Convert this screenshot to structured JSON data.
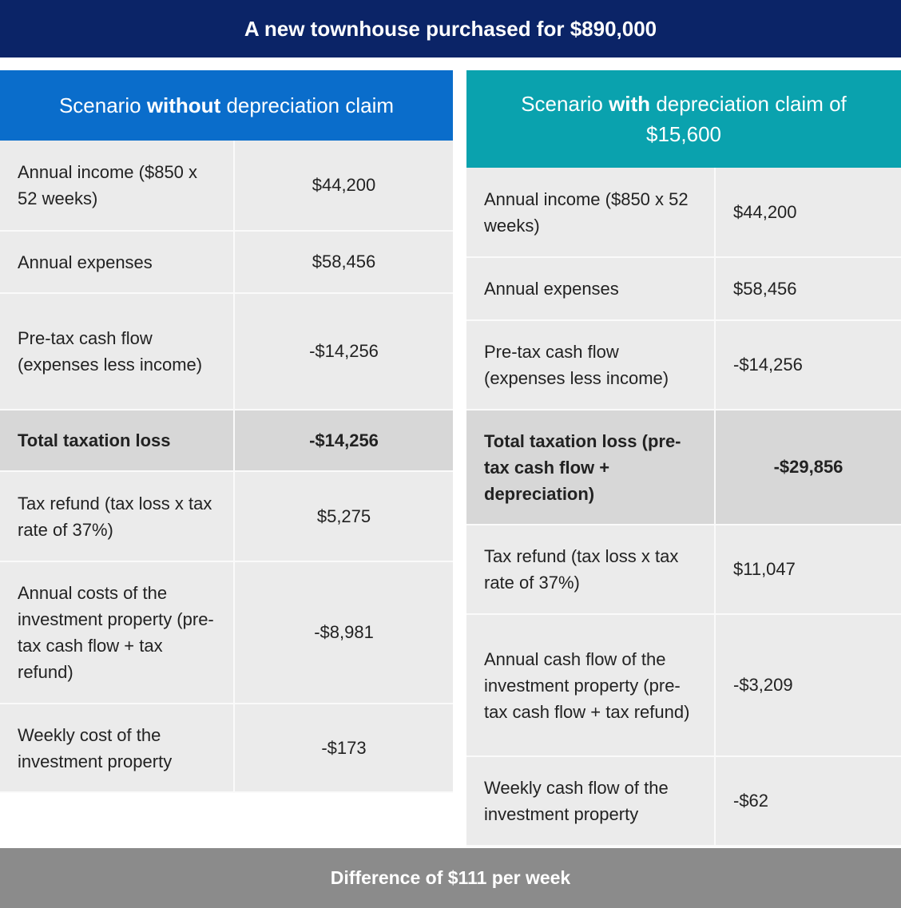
{
  "header": {
    "title": "A new townhouse purchased for $890,000"
  },
  "scenarios": [
    {
      "title_parts": [
        "Scenario",
        "without",
        "depreciation claim"
      ],
      "rows": [
        {
          "label": "Annual income ($850 x 52 weeks)",
          "value": "$44,200",
          "emphasis": false
        },
        {
          "label": "Annual expenses",
          "value": "$58,456",
          "emphasis": false
        },
        {
          "label": "Pre-tax cash flow (expenses less income)",
          "value": "-$14,256",
          "emphasis": false
        },
        {
          "label": "Total taxation loss",
          "value": "-$14,256",
          "emphasis": true
        },
        {
          "label": "Tax refund (tax loss x tax rate of 37%)",
          "value": "$5,275",
          "emphasis": false
        },
        {
          "label": "Annual costs of the investment property (pre-tax cash flow + tax refund)",
          "value": "-$8,981",
          "emphasis": false
        },
        {
          "label": "Weekly cost of the investment property",
          "value": "-$173",
          "emphasis": false
        }
      ]
    },
    {
      "title_parts": [
        "Scenario",
        "with",
        "depreciation claim of $15,600"
      ],
      "rows": [
        {
          "label": "Annual income ($850 x 52 weeks)",
          "value": "$44,200",
          "emphasis": false
        },
        {
          "label": "Annual expenses",
          "value": "$58,456",
          "emphasis": false
        },
        {
          "label": "Pre-tax cash flow (expenses less income)",
          "value": "-$14,256",
          "emphasis": false
        },
        {
          "label": "Total taxation loss (pre-tax cash flow + depreciation)",
          "value": "-$29,856",
          "emphasis": true
        },
        {
          "label": "Tax refund (tax loss x tax rate of 37%)",
          "value": "$11,047",
          "emphasis": false
        },
        {
          "label": "Annual cash flow of the investment property (pre-tax cash flow + tax refund)",
          "value": "-$3,209",
          "emphasis": false
        },
        {
          "label": "Weekly cash flow of the investment property",
          "value": "-$62",
          "emphasis": false
        }
      ]
    }
  ],
  "footer": {
    "text": "Difference of $111 per week"
  }
}
